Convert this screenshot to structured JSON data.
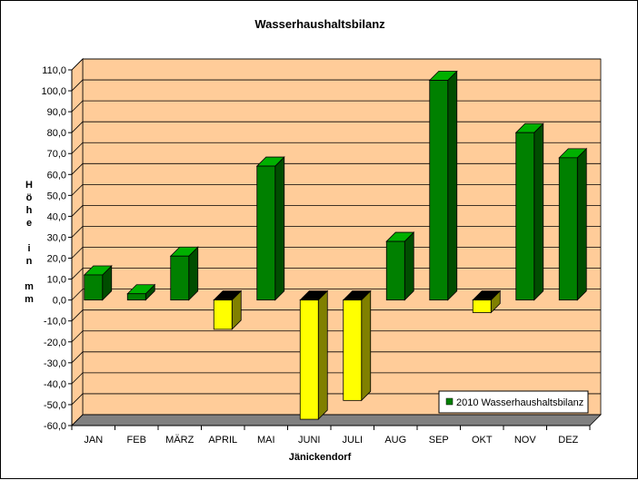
{
  "chart_data": {
    "type": "bar",
    "title": "Wasserhaushaltsbilanz",
    "xlabel": "Jänickendorf",
    "ylabel_lines": [
      "H",
      "ö",
      "h",
      "e",
      "",
      "i",
      "n",
      "",
      "m",
      "m"
    ],
    "categories": [
      "JAN",
      "FEB",
      "MÄRZ",
      "APRIL",
      "MAI",
      "JUNI",
      "JULI",
      "AUG",
      "SEP",
      "OKT",
      "NOV",
      "DEZ"
    ],
    "series": [
      {
        "name": "2010 Wasserhaushaltsbilanz",
        "values": [
          12,
          3,
          21,
          -14,
          64,
          -57,
          -48,
          28,
          105,
          -6,
          80,
          68
        ]
      }
    ],
    "ylim": [
      -60,
      110
    ],
    "ytick_step": 10,
    "ytick_labels": [
      "110,0",
      "100,0",
      "90,0",
      "80,0",
      "70,0",
      "60,0",
      "50,0",
      "40,0",
      "30,0",
      "20,0",
      "10,0",
      "0,0",
      "-10,0",
      "-20,0",
      "-30,0",
      "-40,0",
      "-50,0",
      "-60,0"
    ],
    "grid": true,
    "legend_position": "bottom-right",
    "colors": {
      "positive_front": "#008000",
      "positive_top": "#00b000",
      "positive_side": "#004d00",
      "negative_front": "#ffff00",
      "negative_top": "#000000",
      "negative_side": "#808000",
      "wall": "#ffcc99",
      "floor": "#808080",
      "grid": "#000000"
    }
  }
}
